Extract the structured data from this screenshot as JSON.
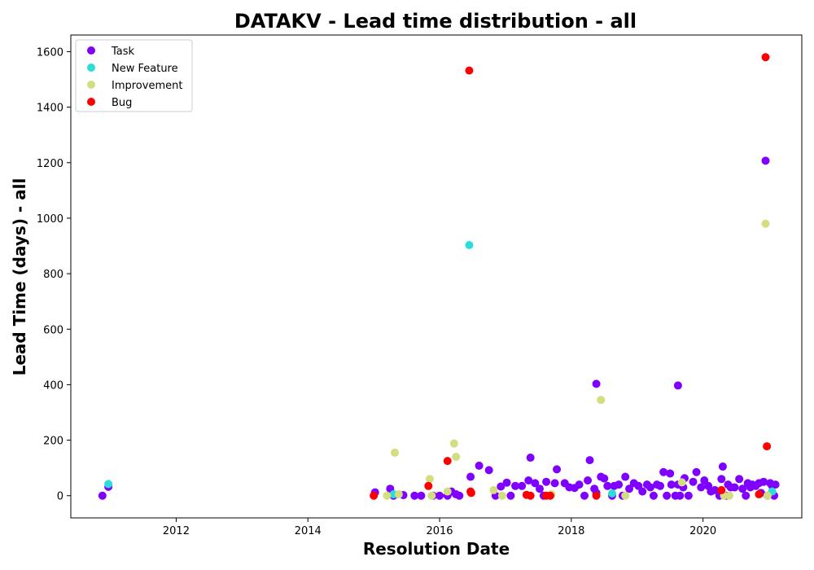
{
  "chart_data": {
    "type": "scatter",
    "title": "DATAKV - Lead time distribution - all",
    "xlabel": "Resolution Date",
    "ylabel": "Lead Time (days) - all",
    "xlim": [
      2010.4,
      2021.5
    ],
    "ylim": [
      -80,
      1660
    ],
    "x_ticks": [
      2012,
      2014,
      2016,
      2018,
      2020
    ],
    "y_ticks": [
      0,
      200,
      400,
      600,
      800,
      1000,
      1200,
      1400,
      1600
    ],
    "grid": false,
    "legend_position": "top-left",
    "series": [
      {
        "name": "Task",
        "color": "#7f00ff",
        "points": [
          [
            2010.88,
            0
          ],
          [
            2010.97,
            32
          ],
          [
            2015.02,
            12
          ],
          [
            2015.25,
            25
          ],
          [
            2015.3,
            0
          ],
          [
            2015.45,
            2
          ],
          [
            2015.62,
            0
          ],
          [
            2015.72,
            0
          ],
          [
            2015.9,
            0
          ],
          [
            2016.0,
            0
          ],
          [
            2016.12,
            0
          ],
          [
            2016.18,
            15
          ],
          [
            2016.25,
            5
          ],
          [
            2016.3,
            0
          ],
          [
            2016.47,
            68
          ],
          [
            2016.6,
            108
          ],
          [
            2016.75,
            92
          ],
          [
            2016.85,
            0
          ],
          [
            2016.93,
            33
          ],
          [
            2017.02,
            47
          ],
          [
            2017.08,
            0
          ],
          [
            2017.15,
            35
          ],
          [
            2017.25,
            35
          ],
          [
            2017.35,
            55
          ],
          [
            2017.38,
            137
          ],
          [
            2017.45,
            45
          ],
          [
            2017.52,
            25
          ],
          [
            2017.58,
            0
          ],
          [
            2017.62,
            50
          ],
          [
            2017.75,
            45
          ],
          [
            2017.78,
            95
          ],
          [
            2017.9,
            45
          ],
          [
            2017.97,
            30
          ],
          [
            2018.05,
            28
          ],
          [
            2018.12,
            40
          ],
          [
            2018.2,
            0
          ],
          [
            2018.25,
            55
          ],
          [
            2018.28,
            128
          ],
          [
            2018.35,
            25
          ],
          [
            2018.38,
            10
          ],
          [
            2018.45,
            68
          ],
          [
            2018.5,
            62
          ],
          [
            2018.55,
            35
          ],
          [
            2018.62,
            0
          ],
          [
            2018.65,
            35
          ],
          [
            2018.72,
            40
          ],
          [
            2018.78,
            0
          ],
          [
            2018.82,
            68
          ],
          [
            2018.88,
            25
          ],
          [
            2018.95,
            45
          ],
          [
            2019.02,
            35
          ],
          [
            2019.08,
            15
          ],
          [
            2019.15,
            40
          ],
          [
            2019.2,
            30
          ],
          [
            2019.25,
            0
          ],
          [
            2019.3,
            40
          ],
          [
            2019.35,
            35
          ],
          [
            2019.4,
            85
          ],
          [
            2019.45,
            0
          ],
          [
            2019.5,
            80
          ],
          [
            2019.52,
            40
          ],
          [
            2019.58,
            0
          ],
          [
            2019.62,
            40
          ],
          [
            2019.65,
            0
          ],
          [
            2019.7,
            30
          ],
          [
            2019.72,
            63
          ],
          [
            2019.78,
            0
          ],
          [
            2019.85,
            50
          ],
          [
            2019.9,
            85
          ],
          [
            2019.97,
            30
          ],
          [
            2020.02,
            55
          ],
          [
            2020.08,
            35
          ],
          [
            2020.12,
            15
          ],
          [
            2020.18,
            20
          ],
          [
            2020.25,
            0
          ],
          [
            2020.28,
            60
          ],
          [
            2020.3,
            105
          ],
          [
            2020.35,
            0
          ],
          [
            2020.38,
            40
          ],
          [
            2020.42,
            30
          ],
          [
            2020.48,
            30
          ],
          [
            2020.55,
            60
          ],
          [
            2020.6,
            25
          ],
          [
            2020.65,
            0
          ],
          [
            2020.68,
            45
          ],
          [
            2020.72,
            30
          ],
          [
            2020.75,
            40
          ],
          [
            2020.8,
            35
          ],
          [
            2020.85,
            45
          ],
          [
            2020.88,
            10
          ],
          [
            2020.92,
            50
          ],
          [
            2020.98,
            0
          ],
          [
            2021.02,
            45
          ],
          [
            2021.05,
            35
          ],
          [
            2021.08,
            0
          ],
          [
            2021.1,
            40
          ],
          [
            2019.62,
            397
          ],
          [
            2018.38,
            403
          ],
          [
            2020.95,
            1207
          ]
        ]
      },
      {
        "name": "New Feature",
        "color": "#2adddd",
        "points": [
          [
            2010.97,
            42
          ],
          [
            2015.3,
            5
          ],
          [
            2016.45,
            903
          ],
          [
            2018.62,
            8
          ],
          [
            2021.05,
            15
          ]
        ]
      },
      {
        "name": "Improvement",
        "color": "#d4dd80",
        "points": [
          [
            2015.2,
            0
          ],
          [
            2015.32,
            155
          ],
          [
            2015.38,
            5
          ],
          [
            2015.85,
            60
          ],
          [
            2015.88,
            0
          ],
          [
            2016.12,
            15
          ],
          [
            2016.22,
            188
          ],
          [
            2016.25,
            140
          ],
          [
            2016.82,
            20
          ],
          [
            2016.95,
            0
          ],
          [
            2017.7,
            5
          ],
          [
            2018.45,
            345
          ],
          [
            2018.82,
            0
          ],
          [
            2019.68,
            48
          ],
          [
            2020.32,
            0
          ],
          [
            2020.4,
            0
          ],
          [
            2020.95,
            980
          ],
          [
            2020.98,
            0
          ]
        ]
      },
      {
        "name": "Bug",
        "color": "#ff0000",
        "points": [
          [
            2015.0,
            0
          ],
          [
            2015.83,
            35
          ],
          [
            2016.12,
            125
          ],
          [
            2016.45,
            1532
          ],
          [
            2016.47,
            15
          ],
          [
            2016.48,
            10
          ],
          [
            2017.32,
            3
          ],
          [
            2017.38,
            0
          ],
          [
            2017.62,
            0
          ],
          [
            2017.68,
            0
          ],
          [
            2018.38,
            0
          ],
          [
            2020.28,
            20
          ],
          [
            2020.85,
            5
          ],
          [
            2020.95,
            1580
          ],
          [
            2020.97,
            178
          ]
        ]
      }
    ]
  }
}
